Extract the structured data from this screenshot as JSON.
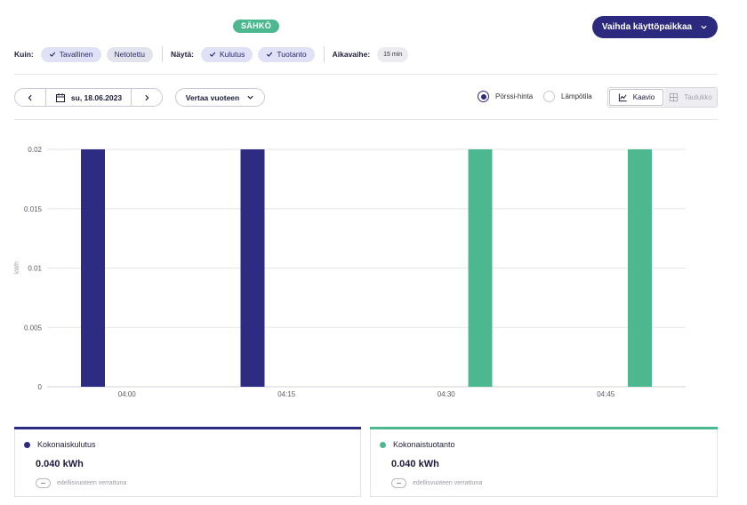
{
  "header": {
    "badge": "SÄHKÖ",
    "switch_location_label": "Vaihda käyttöpaikkaa"
  },
  "filters": {
    "kuin_label": "Kuin:",
    "kuin_options": [
      {
        "label": "Tavallinen",
        "selected": true
      },
      {
        "label": "Netotettu",
        "selected": false
      }
    ],
    "nayta_label": "Näytä:",
    "nayta_options": [
      {
        "label": "Kulutus",
        "selected": true
      },
      {
        "label": "Tuotanto",
        "selected": true
      }
    ],
    "aikavaihe_label": "Aikavaihe:",
    "aikavaihe_value": "15 min"
  },
  "toolbar": {
    "date": "su, 18.06.2023",
    "compare_label": "Vertaa vuoteen",
    "radio_options": [
      {
        "label": "Pörssi-hinta",
        "selected": true
      },
      {
        "label": "Lämpötila",
        "selected": false
      }
    ],
    "view_chart_label": "Kaavio",
    "view_table_label": "Taulukko"
  },
  "colors": {
    "consumption": "#2e2c82",
    "production": "#4db88f",
    "accent": "#2c2a7e"
  },
  "chart_data": {
    "type": "bar",
    "ylabel": "kWh",
    "ylim": [
      0,
      0.02
    ],
    "yticks": [
      "0.02",
      "0.015",
      "0.01",
      "0.005",
      "0"
    ],
    "ytick_values": [
      0.02,
      0.015,
      0.01,
      0.005,
      0
    ],
    "categories": [
      "04:00",
      "04:15",
      "04:30",
      "04:45"
    ],
    "series": [
      {
        "name": "Kokonaiskulutus",
        "color": "#2e2c82",
        "values": [
          0.02,
          0.02,
          0,
          0
        ]
      },
      {
        "name": "Kokonaistuotanto",
        "color": "#4db88f",
        "values": [
          0,
          0,
          0.02,
          0.02
        ]
      }
    ],
    "grid": true
  },
  "summary": [
    {
      "title": "Kokonaiskulutus",
      "value": "0.040 kWh",
      "compare": "edellisvuoteen verrattuna",
      "color": "#2e2c82"
    },
    {
      "title": "Kokonaistuotanto",
      "value": "0.040 kWh",
      "compare": "edellisvuoteen verrattuna",
      "color": "#4db88f"
    }
  ]
}
